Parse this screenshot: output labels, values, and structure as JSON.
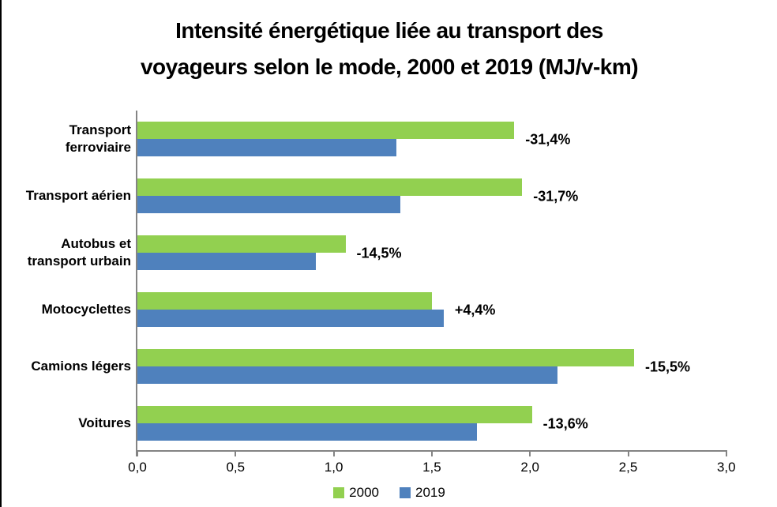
{
  "page": {
    "background": "#FFFFFF",
    "border_color": "#000000"
  },
  "chart_data": {
    "type": "bar",
    "orientation": "horizontal",
    "title": "Intensité énergétique liée au transport des voyageurs selon le mode, 2000 et 2019 (MJ/v-km)",
    "title_lines": [
      "Intensité énergétique liée au transport des",
      "voyageurs selon le mode, 2000 et 2019 (MJ/v-km)"
    ],
    "categories": [
      "Transport ferroviaire",
      "Transport aérien",
      "Autobus et transport urbain",
      "Motocyclettes",
      "Camions légers",
      "Voitures"
    ],
    "series": [
      {
        "name": "2000",
        "color": "#92D050",
        "values": [
          1.92,
          1.96,
          1.06,
          1.5,
          2.53,
          2.01
        ]
      },
      {
        "name": "2019",
        "color": "#4F81BD",
        "values": [
          1.32,
          1.34,
          0.91,
          1.56,
          2.14,
          1.73
        ]
      }
    ],
    "change_labels": [
      "-31,4%",
      "-31,7%",
      "-14,5%",
      "+4,4%",
      "-15,5%",
      "-13,6%"
    ],
    "xlabel": "",
    "ylabel": "",
    "xlim": [
      0,
      3.0
    ],
    "xtick_values": [
      0,
      0.5,
      1.0,
      1.5,
      2.0,
      2.5,
      3.0
    ],
    "xtick_labels": [
      "0,0",
      "0,5",
      "1,0",
      "1,5",
      "2,0",
      "2,5",
      "3,0"
    ],
    "grid": false,
    "legend_position": "bottom",
    "legend": [
      "2000",
      "2019"
    ],
    "axis_color": "#848484",
    "text_color": "#000000"
  }
}
